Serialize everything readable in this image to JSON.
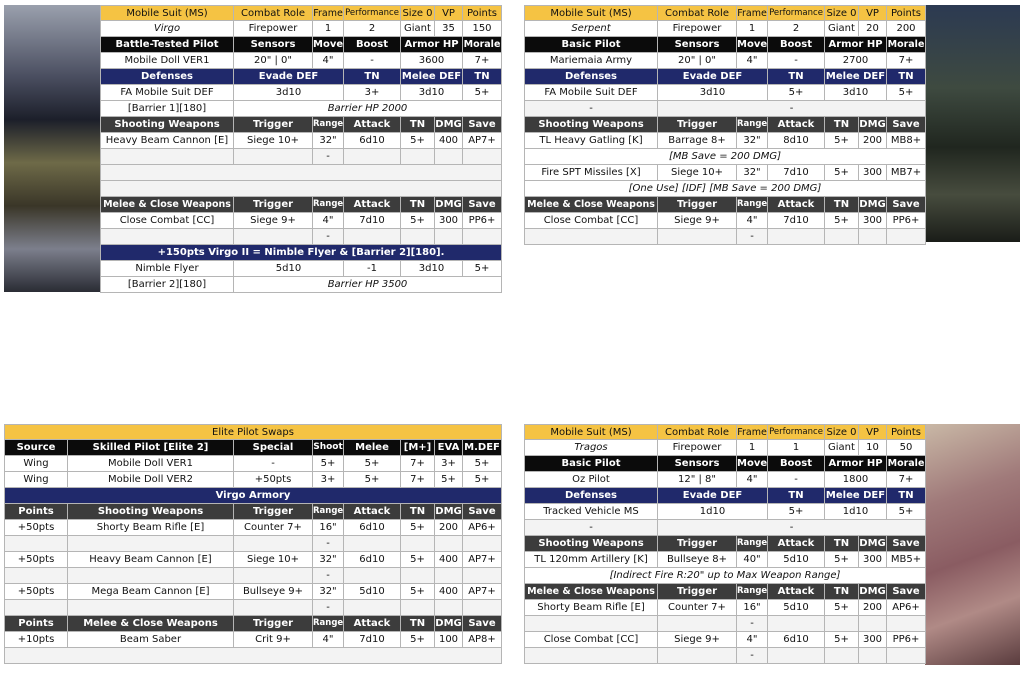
{
  "panels": [
    {
      "rows": [
        [
          "Mobile Suit (MS)",
          "Combat Role",
          "Frame",
          "Performance",
          "Size 0",
          "VP",
          "Points"
        ],
        [
          "Virgo",
          "Firepower",
          "1",
          "2",
          "Giant",
          "35",
          "150"
        ],
        [
          "Battle-Tested Pilot",
          "Sensors",
          "Move",
          "Boost",
          "Armor HP",
          "Morale"
        ],
        [
          "Mobile Doll VER1",
          "20\" | 0\"",
          "4\"",
          "-",
          "3600",
          "7+"
        ],
        [
          "Defenses",
          "Evade DEF",
          "TN",
          "Melee DEF",
          "TN"
        ],
        [
          "FA Mobile Suit DEF",
          "3d10",
          "3+",
          "3d10",
          "5+"
        ],
        [
          "[Barrier 1][180]",
          "Barrier HP 2000"
        ],
        [
          "Shooting Weapons",
          "Trigger",
          "Range",
          "Attack",
          "TN",
          "DMG",
          "Save"
        ],
        [
          "Heavy Beam Cannon [E]",
          "Siege 10+",
          "32\"",
          "6d10",
          "5+",
          "400",
          "AP7+"
        ],
        [
          "-"
        ],
        [
          "Melee & Close Weapons",
          "Trigger",
          "Range",
          "Attack",
          "TN",
          "DMG",
          "Save"
        ],
        [
          "Close Combat [CC]",
          "Siege 9+",
          "4\"",
          "7d10",
          "5+",
          "300",
          "PP6+"
        ],
        [
          "-"
        ],
        [
          "+150pts Virgo II = Nimble Flyer & [Barrier 2][180]."
        ],
        [
          "Nimble Flyer",
          "5d10",
          "-1",
          "3d10",
          "5+"
        ],
        [
          "[Barrier 2][180]",
          "Barrier HP 3500"
        ]
      ]
    },
    {
      "rows": [
        [
          "Mobile Suit (MS)",
          "Combat Role",
          "Frame",
          "Performance",
          "Size 0",
          "VP",
          "Points"
        ],
        [
          "Serpent",
          "Firepower",
          "1",
          "2",
          "Giant",
          "20",
          "200"
        ],
        [
          "Basic Pilot",
          "Sensors",
          "Move",
          "Boost",
          "Armor HP",
          "Morale"
        ],
        [
          "Mariemaia Army",
          "20\" | 0\"",
          "4\"",
          "-",
          "2700",
          "7+"
        ],
        [
          "Defenses",
          "Evade DEF",
          "TN",
          "Melee DEF",
          "TN"
        ],
        [
          "FA Mobile Suit DEF",
          "3d10",
          "5+",
          "3d10",
          "5+"
        ],
        [
          "-",
          "-"
        ],
        [
          "Shooting Weapons",
          "Trigger",
          "Range",
          "Attack",
          "TN",
          "DMG",
          "Save"
        ],
        [
          "TL Heavy Gatling [K]",
          "Barrage 8+",
          "32\"",
          "8d10",
          "5+",
          "200",
          "MB8+"
        ],
        [
          "[MB Save = 200 DMG]"
        ],
        [
          "Fire SPT Missiles [X]",
          "Siege 10+",
          "32\"",
          "7d10",
          "5+",
          "300",
          "MB7+"
        ],
        [
          "[One Use] [IDF] [MB Save = 200 DMG]"
        ],
        [
          "Melee & Close Weapons",
          "Trigger",
          "Range",
          "Attack",
          "TN",
          "DMG",
          "Save"
        ],
        [
          "Close Combat [CC]",
          "Siege 9+",
          "4\"",
          "7d10",
          "5+",
          "300",
          "PP6+"
        ],
        [
          "-"
        ]
      ]
    },
    {
      "rows": [
        [
          "Elite Pilot Swaps"
        ],
        [
          "Source",
          "Skilled Pilot [Elite 2]",
          "Special",
          "Shoot",
          "Melee",
          "[M+]",
          "EVA",
          "M.DEF"
        ],
        [
          "Wing",
          "Mobile Doll VER1",
          "-",
          "5+",
          "5+",
          "7+",
          "3+",
          "5+"
        ],
        [
          "Wing",
          "Mobile Doll VER2",
          "+50pts",
          "3+",
          "5+",
          "7+",
          "5+",
          "5+"
        ],
        [
          "Virgo Armory"
        ],
        [
          "Points",
          "Shooting Weapons",
          "Trigger",
          "Range",
          "Attack",
          "TN",
          "DMG",
          "Save"
        ],
        [
          "+50pts",
          "Shorty Beam Rifle [E]",
          "Counter 7+",
          "16\"",
          "6d10",
          "5+",
          "200",
          "AP6+"
        ],
        [
          "-"
        ],
        [
          "+50pts",
          "Heavy Beam Cannon [E]",
          "Siege 10+",
          "32\"",
          "6d10",
          "5+",
          "400",
          "AP7+"
        ],
        [
          "-"
        ],
        [
          "+50pts",
          "Mega Beam Cannon [E]",
          "Bullseye 9+",
          "32\"",
          "5d10",
          "5+",
          "400",
          "AP7+"
        ],
        [
          "-"
        ],
        [
          "Points",
          "Melee & Close Weapons",
          "Trigger",
          "Range",
          "Attack",
          "TN",
          "DMG",
          "Save"
        ],
        [
          "+10pts",
          "Beam Saber",
          "Crit 9+",
          "4\"",
          "7d10",
          "5+",
          "100",
          "AP8+"
        ]
      ]
    },
    {
      "rows": [
        [
          "Mobile Suit (MS)",
          "Combat Role",
          "Frame",
          "Performance",
          "Size 0",
          "VP",
          "Points"
        ],
        [
          "Tragos",
          "Firepower",
          "1",
          "1",
          "Giant",
          "10",
          "50"
        ],
        [
          "Basic Pilot",
          "Sensors",
          "Move",
          "Boost",
          "Armor HP",
          "Morale"
        ],
        [
          "Oz Pilot",
          "12\" | 8\"",
          "4\"",
          "-",
          "1800",
          "7+"
        ],
        [
          "Defenses",
          "Evade DEF",
          "TN",
          "Melee DEF",
          "TN"
        ],
        [
          "Tracked Vehicle MS",
          "1d10",
          "5+",
          "1d10",
          "5+"
        ],
        [
          "-",
          "-"
        ],
        [
          "Shooting Weapons",
          "Trigger",
          "Range",
          "Attack",
          "TN",
          "DMG",
          "Save"
        ],
        [
          "TL 120mm Artillery [K]",
          "Bullseye 8+",
          "40\"",
          "5d10",
          "5+",
          "300",
          "MB5+"
        ],
        [
          "[Indirect Fire R:20\" up to Max Weapon Range]"
        ],
        [
          "Melee & Close Weapons",
          "Trigger",
          "Range",
          "Attack",
          "TN",
          "DMG",
          "Save"
        ],
        [
          "Shorty Beam Rifle [E]",
          "Counter 7+",
          "16\"",
          "5d10",
          "5+",
          "200",
          "AP6+"
        ],
        [
          "-"
        ],
        [
          "Close Combat [CC]",
          "Siege 9+",
          "4\"",
          "6d10",
          "5+",
          "300",
          "PP6+"
        ],
        [
          "-"
        ]
      ]
    }
  ]
}
